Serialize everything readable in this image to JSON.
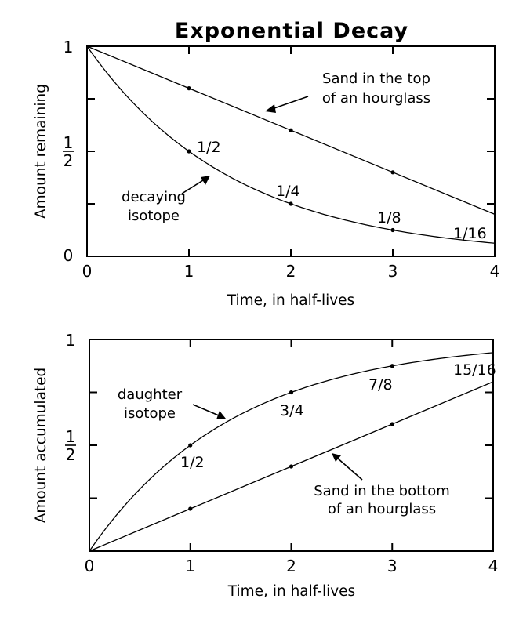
{
  "title": "Exponential Decay",
  "chart_data": [
    {
      "type": "line",
      "title": "Exponential Decay",
      "xlabel": "Time,  in  half-lives",
      "ylabel": "Amount  remaining",
      "xlim": [
        0,
        4
      ],
      "ylim": [
        0,
        1
      ],
      "x_ticks": [
        0,
        1,
        2,
        3,
        4
      ],
      "x_tick_labels": [
        "0",
        "1",
        "2",
        "3",
        "4"
      ],
      "y_ticks": [
        0,
        0.25,
        0.5,
        0.75,
        1
      ],
      "y_tick_labels": [
        {
          "value": 0,
          "text": "0"
        },
        {
          "value": 0.5,
          "text": "1/2"
        },
        {
          "value": 1,
          "text": "1"
        }
      ],
      "series": [
        {
          "kind": "linear",
          "x": [
            0,
            1,
            2,
            3,
            4
          ],
          "values": [
            1,
            0.8,
            0.6,
            0.4,
            0.2
          ],
          "annotation": [
            "Sand in the top",
            "of  an  hourglass"
          ],
          "point_labels": []
        },
        {
          "kind": "exponential",
          "x": [
            0,
            1,
            2,
            3,
            4
          ],
          "values": [
            1,
            0.5,
            0.25,
            0.125,
            0.0625
          ],
          "annotation": [
            "decaying",
            "isotope"
          ],
          "point_labels": [
            "",
            "1/2",
            "1/4",
            "1/8",
            "1/16"
          ]
        }
      ]
    },
    {
      "type": "line",
      "xlabel": "Time,  in  half-lives",
      "ylabel": "Amount  accumulated",
      "xlim": [
        0,
        4
      ],
      "ylim": [
        0,
        1
      ],
      "x_ticks": [
        0,
        1,
        2,
        3,
        4
      ],
      "x_tick_labels": [
        "0",
        "1",
        "2",
        "3",
        "4"
      ],
      "y_ticks": [
        0,
        0.25,
        0.5,
        0.75,
        1
      ],
      "y_tick_labels": [
        {
          "value": 0.5,
          "text": "1/2"
        },
        {
          "value": 1,
          "text": "1"
        }
      ],
      "series": [
        {
          "kind": "exponential",
          "x": [
            0,
            1,
            2,
            3,
            4
          ],
          "values": [
            0,
            0.5,
            0.75,
            0.875,
            0.9375
          ],
          "annotation": [
            "daughter",
            "isotope"
          ],
          "point_labels": [
            "",
            "1/2",
            "3/4",
            "7/8",
            "15/16"
          ]
        },
        {
          "kind": "linear",
          "x": [
            0,
            1,
            2,
            3,
            4
          ],
          "values": [
            0,
            0.2,
            0.4,
            0.6,
            0.8
          ],
          "annotation": [
            "Sand  in  the  bottom",
            "of  an  hourglass"
          ],
          "point_labels": []
        }
      ]
    }
  ]
}
